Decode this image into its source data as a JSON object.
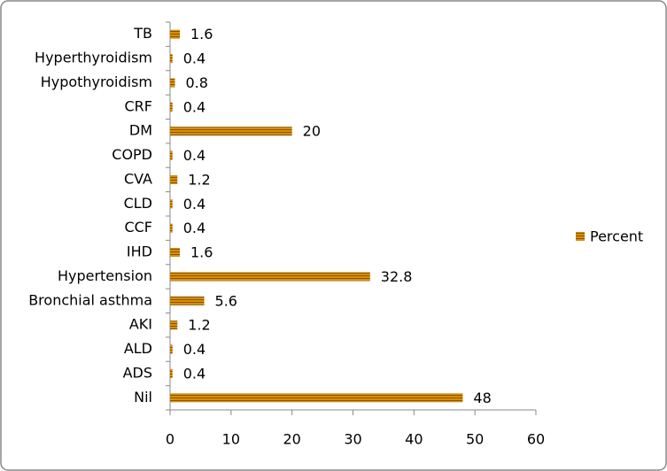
{
  "chart_data": {
    "type": "bar",
    "orientation": "horizontal",
    "categories": [
      "TB",
      "Hyperthyroidism",
      "Hypothyroidism",
      "CRF",
      "DM",
      "COPD",
      "CVA",
      "CLD",
      "CCF",
      "IHD",
      "Hypertension",
      "Bronchial asthma",
      "AKI",
      "ALD",
      "ADS",
      "Nil"
    ],
    "series": [
      {
        "name": "Percent",
        "color": "#d99000",
        "stripe_color": "#8a5200",
        "values": [
          1.6,
          0.4,
          0.8,
          0.4,
          20,
          0.4,
          1.2,
          0.4,
          0.4,
          1.6,
          32.8,
          5.6,
          1.2,
          0.4,
          0.4,
          48
        ]
      }
    ],
    "xlim": [
      0,
      60
    ],
    "xticks": [
      0,
      10,
      20,
      30,
      40,
      50,
      60
    ],
    "grid": false,
    "legend": "right"
  }
}
